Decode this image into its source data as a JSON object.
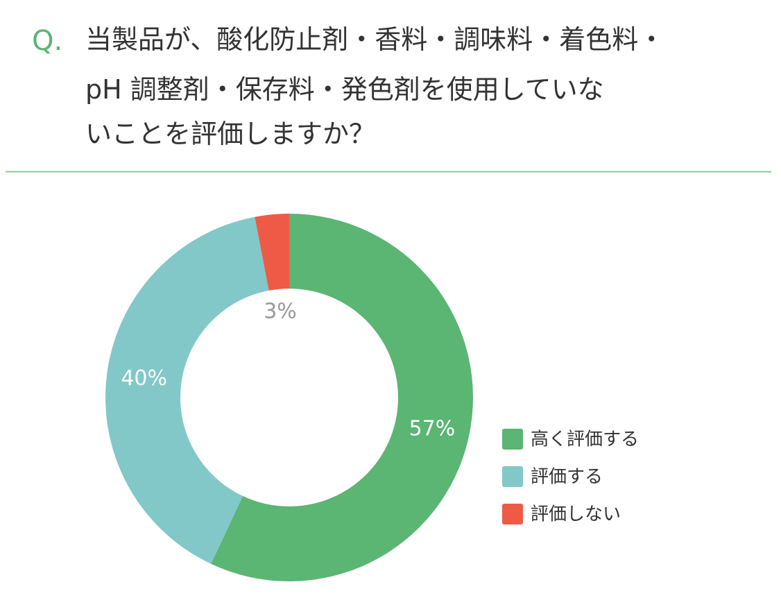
{
  "chart_data": {
    "type": "donut",
    "question_marker": "Q.",
    "title": [
      "当製品が、酸化防止剤・香料・調味料・着色料・",
      "pH 調整剤・保存料・発色剤を使用していな",
      "いことを評価しますか？"
    ],
    "categories": [
      "高く評価する",
      "評価する",
      "評価しない"
    ],
    "values": [
      57,
      40,
      3
    ],
    "value_labels": [
      "57%",
      "40%",
      "3%"
    ],
    "colors": [
      "#5bb573",
      "#82c8c8",
      "#ee5a45"
    ],
    "legend": "right"
  }
}
